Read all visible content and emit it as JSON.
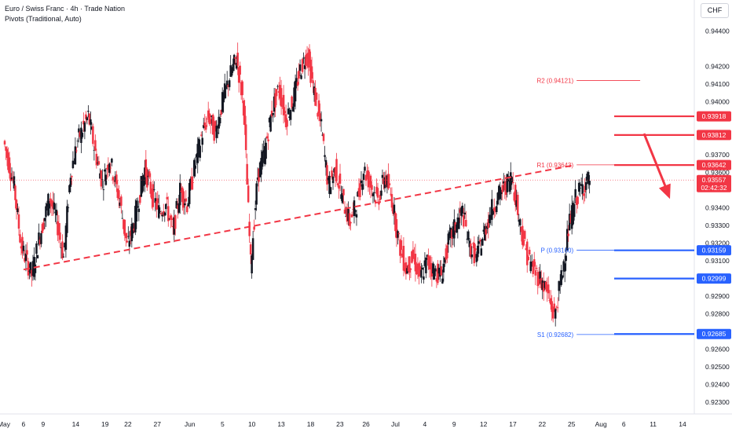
{
  "header": {
    "title": "Euro / Swiss Franc · 4h · Trade Nation",
    "indicator": "Pivots (Traditional, Auto)"
  },
  "currency": "CHF",
  "colors": {
    "up": "#131722",
    "down": "#e84545",
    "bull_body": "#131722",
    "bear_body": "#f23645",
    "resistance": "#f23645",
    "support": "#2962ff",
    "arrow": "#f23645"
  },
  "chart_data": {
    "type": "candlestick",
    "title": "Euro / Swiss Franc · 4h · Trade Nation",
    "ylim": [
      0.9225,
      0.9455
    ],
    "y_ticks": [
      "0.94400",
      "0.94200",
      "0.94100",
      "0.94000",
      "0.93700",
      "0.93600",
      "0.93400",
      "0.93300",
      "0.93200",
      "0.93100",
      "0.92900",
      "0.92800",
      "0.92600",
      "0.92500",
      "0.92400",
      "0.92300"
    ],
    "x_ticks": [
      "May",
      "6",
      "9",
      "14",
      "19",
      "22",
      "27",
      "Jun",
      "5",
      "10",
      "13",
      "18",
      "23",
      "26",
      "Jul",
      "4",
      "9",
      "12",
      "17",
      "22",
      "25",
      "Aug",
      "6",
      "11",
      "14"
    ],
    "price_series": [
      {
        "t": 0,
        "v": 0.9378
      },
      {
        "t": 3,
        "v": 0.9352
      },
      {
        "t": 5,
        "v": 0.9318
      },
      {
        "t": 8,
        "v": 0.9302
      },
      {
        "t": 10,
        "v": 0.9322
      },
      {
        "t": 13,
        "v": 0.9346
      },
      {
        "t": 15,
        "v": 0.9333
      },
      {
        "t": 17,
        "v": 0.9312
      },
      {
        "t": 19,
        "v": 0.936
      },
      {
        "t": 21,
        "v": 0.9378
      },
      {
        "t": 24,
        "v": 0.9392
      },
      {
        "t": 26,
        "v": 0.9371
      },
      {
        "t": 28,
        "v": 0.9354
      },
      {
        "t": 30,
        "v": 0.9368
      },
      {
        "t": 33,
        "v": 0.9343
      },
      {
        "t": 35,
        "v": 0.9318
      },
      {
        "t": 37,
        "v": 0.9332
      },
      {
        "t": 40,
        "v": 0.9362
      },
      {
        "t": 42,
        "v": 0.9348
      },
      {
        "t": 44,
        "v": 0.9338
      },
      {
        "t": 46,
        "v": 0.9342
      },
      {
        "t": 48,
        "v": 0.9326
      },
      {
        "t": 50,
        "v": 0.935
      },
      {
        "t": 52,
        "v": 0.9342
      },
      {
        "t": 54,
        "v": 0.9362
      },
      {
        "t": 56,
        "v": 0.938
      },
      {
        "t": 58,
        "v": 0.9392
      },
      {
        "t": 60,
        "v": 0.9382
      },
      {
        "t": 62,
        "v": 0.94
      },
      {
        "t": 64,
        "v": 0.9414
      },
      {
        "t": 66,
        "v": 0.9425
      },
      {
        "t": 68,
        "v": 0.9398
      },
      {
        "t": 70,
        "v": 0.9308
      },
      {
        "t": 72,
        "v": 0.9358
      },
      {
        "t": 74,
        "v": 0.9372
      },
      {
        "t": 76,
        "v": 0.9395
      },
      {
        "t": 78,
        "v": 0.9408
      },
      {
        "t": 80,
        "v": 0.939
      },
      {
        "t": 82,
        "v": 0.9401
      },
      {
        "t": 84,
        "v": 0.9418
      },
      {
        "t": 86,
        "v": 0.9428
      },
      {
        "t": 88,
        "v": 0.9405
      },
      {
        "t": 90,
        "v": 0.9385
      },
      {
        "t": 92,
        "v": 0.9352
      },
      {
        "t": 94,
        "v": 0.9362
      },
      {
        "t": 96,
        "v": 0.9345
      },
      {
        "t": 98,
        "v": 0.9332
      },
      {
        "t": 100,
        "v": 0.9342
      },
      {
        "t": 102,
        "v": 0.9362
      },
      {
        "t": 104,
        "v": 0.9353
      },
      {
        "t": 106,
        "v": 0.9344
      },
      {
        "t": 108,
        "v": 0.9358
      },
      {
        "t": 110,
        "v": 0.9345
      },
      {
        "t": 112,
        "v": 0.932
      },
      {
        "t": 114,
        "v": 0.9305
      },
      {
        "t": 116,
        "v": 0.9312
      },
      {
        "t": 118,
        "v": 0.93
      },
      {
        "t": 120,
        "v": 0.931
      },
      {
        "t": 122,
        "v": 0.9304
      },
      {
        "t": 124,
        "v": 0.9302
      },
      {
        "t": 126,
        "v": 0.932
      },
      {
        "t": 128,
        "v": 0.933
      },
      {
        "t": 130,
        "v": 0.9338
      },
      {
        "t": 132,
        "v": 0.9318
      },
      {
        "t": 134,
        "v": 0.9312
      },
      {
        "t": 136,
        "v": 0.9325
      },
      {
        "t": 138,
        "v": 0.9338
      },
      {
        "t": 140,
        "v": 0.9346
      },
      {
        "t": 142,
        "v": 0.9352
      },
      {
        "t": 144,
        "v": 0.9358
      },
      {
        "t": 146,
        "v": 0.9334
      },
      {
        "t": 148,
        "v": 0.9315
      },
      {
        "t": 150,
        "v": 0.9305
      },
      {
        "t": 152,
        "v": 0.93
      },
      {
        "t": 154,
        "v": 0.9292
      },
      {
        "t": 156,
        "v": 0.9278
      },
      {
        "t": 158,
        "v": 0.93
      },
      {
        "t": 160,
        "v": 0.9328
      },
      {
        "t": 162,
        "v": 0.9345
      },
      {
        "t": 164,
        "v": 0.9352
      },
      {
        "t": 166,
        "v": 0.9356
      }
    ],
    "current_price": "0.93557",
    "countdown": "02:42:32",
    "trendline": {
      "from": {
        "t": 0,
        "v": 0.9305
      },
      "to": {
        "t": 161,
        "v": 0.9364
      }
    },
    "pivot_levels": [
      {
        "name": "R2",
        "label": "R2 (0.94121)",
        "value": 0.94121,
        "kind": "resistance"
      },
      {
        "name": "R1",
        "label": "R1 (0.93643)",
        "value": 0.93643,
        "kind": "resistance"
      },
      {
        "name": "P",
        "label": "P (0.93160)",
        "value": 0.9316,
        "kind": "support"
      },
      {
        "name": "S1",
        "label": "S1 (0.92682)",
        "value": 0.92682,
        "kind": "support"
      }
    ],
    "price_badges": [
      {
        "text": "0.93918",
        "value": 0.93918,
        "kind": "resistance"
      },
      {
        "text": "0.93812",
        "value": 0.93812,
        "kind": "resistance"
      },
      {
        "text": "0.93642",
        "value": 0.93642,
        "kind": "resistance"
      },
      {
        "text": "0.93159",
        "value": 0.93159,
        "kind": "support"
      },
      {
        "text": "0.92999",
        "value": 0.92999,
        "kind": "support"
      },
      {
        "text": "0.92685",
        "value": 0.92685,
        "kind": "support"
      }
    ],
    "forecast_arrow": {
      "from": {
        "t": 174,
        "v": 0.9382
      },
      "to": {
        "t": 186,
        "v": 0.9345
      }
    }
  }
}
